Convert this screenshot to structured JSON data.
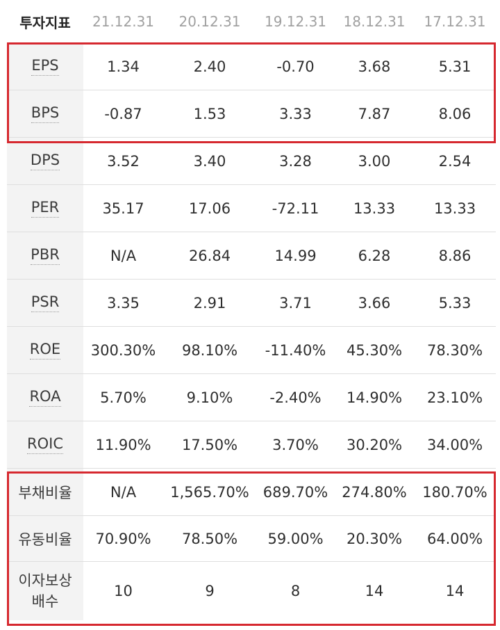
{
  "header": {
    "title": "투자지표",
    "dates": [
      "21.12.31",
      "20.12.31",
      "19.12.31",
      "18.12.31",
      "17.12.31"
    ]
  },
  "rows": [
    {
      "label": "EPS",
      "values": [
        "1.34",
        "2.40",
        "-0.70",
        "3.68",
        "5.31"
      ]
    },
    {
      "label": "BPS",
      "values": [
        "-0.87",
        "1.53",
        "3.33",
        "7.87",
        "8.06"
      ]
    },
    {
      "label": "DPS",
      "values": [
        "3.52",
        "3.40",
        "3.28",
        "3.00",
        "2.54"
      ]
    },
    {
      "label": "PER",
      "values": [
        "35.17",
        "17.06",
        "-72.11",
        "13.33",
        "13.33"
      ]
    },
    {
      "label": "PBR",
      "values": [
        "N/A",
        "26.84",
        "14.99",
        "6.28",
        "8.86"
      ]
    },
    {
      "label": "PSR",
      "values": [
        "3.35",
        "2.91",
        "3.71",
        "3.66",
        "5.33"
      ]
    },
    {
      "label": "ROE",
      "values": [
        "300.30%",
        "98.10%",
        "-11.40%",
        "45.30%",
        "78.30%"
      ]
    },
    {
      "label": "ROA",
      "values": [
        "5.70%",
        "9.10%",
        "-2.40%",
        "14.90%",
        "23.10%"
      ]
    },
    {
      "label": "ROIC",
      "values": [
        "11.90%",
        "17.50%",
        "3.70%",
        "30.20%",
        "34.00%"
      ]
    },
    {
      "label": "부채비율",
      "values": [
        "N/A",
        "1,565.70%",
        "689.70%",
        "274.80%",
        "180.70%"
      ]
    },
    {
      "label": "유동비율",
      "values": [
        "70.90%",
        "78.50%",
        "59.00%",
        "20.30%",
        "64.00%"
      ]
    },
    {
      "label_line1": "이자보상",
      "label_line2": "배수",
      "values": [
        "10",
        "9",
        "8",
        "14",
        "14"
      ]
    }
  ],
  "colors": {
    "highlight": "#d6282f",
    "label_bg": "#f3f3f3",
    "date_text": "#a0a0a0"
  }
}
